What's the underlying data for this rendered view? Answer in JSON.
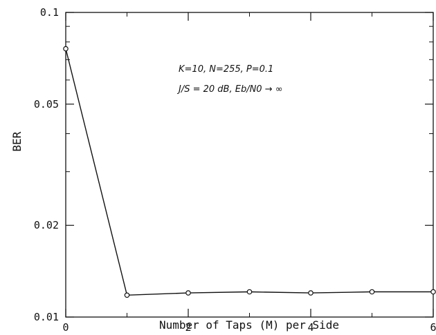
{
  "chart_data": {
    "type": "line",
    "title": "",
    "xlabel": "Number of Taps (M) per Side",
    "ylabel": "BER",
    "xlim": [
      0,
      6
    ],
    "ylim": [
      0.01,
      0.1
    ],
    "yscale": "log",
    "grid": false,
    "x_ticks": [
      0,
      2,
      4,
      6
    ],
    "x_tick_labels": [
      "0",
      "2",
      "4",
      "6"
    ],
    "y_ticks": [
      0.01,
      0.02,
      0.05,
      0.1
    ],
    "y_tick_labels": [
      "0.01",
      "0.02",
      "0.05",
      "0.1"
    ],
    "series": [
      {
        "x": [
          0,
          1,
          2,
          3,
          4,
          5,
          6
        ],
        "y": [
          0.076,
          0.0118,
          0.012,
          0.0121,
          0.012,
          0.0121,
          0.0121
        ]
      }
    ],
    "annotations": [
      "K=10, N=255, P=0.1",
      "J/S = 20 dB, Eb/N0 → ∞"
    ],
    "line_color": "#111111"
  }
}
